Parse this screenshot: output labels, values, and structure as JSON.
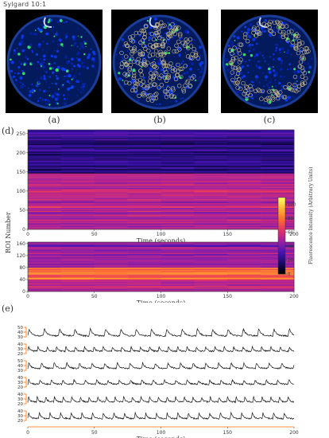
{
  "figure_title": "Sylgard 10:1",
  "panel_labels": {
    "a": "(a)",
    "b": "(b)",
    "c": "(c)",
    "d": "(d)",
    "e": "(e)"
  },
  "colors": {
    "roi_outline": "#c8b88a",
    "trace": "#1a1a1a",
    "scale_bar": "#ff6a00"
  },
  "chart_data": [
    {
      "type": "heatmap",
      "panel": "d-top",
      "title": "",
      "xlabel": "Time (seconds)",
      "ylabel": "ROI Number",
      "xlim": [
        0,
        200
      ],
      "ylim": [
        0,
        260
      ],
      "x_ticks": [
        0,
        50,
        100,
        150,
        200
      ],
      "y_ticks": [
        0,
        50,
        100,
        150,
        200,
        250
      ],
      "high_intensity_band_roi": [
        0,
        145
      ],
      "low_intensity_band_roi": [
        145,
        260
      ]
    },
    {
      "type": "heatmap",
      "panel": "d-bottom",
      "title": "",
      "xlabel": "Time (seconds)",
      "ylabel": "ROI Number",
      "xlim": [
        0,
        200
      ],
      "ylim": [
        0,
        165
      ],
      "x_ticks": [
        0,
        50,
        100,
        150,
        200
      ],
      "y_ticks": [
        0,
        40,
        80,
        120,
        160
      ],
      "bright_band_roi": [
        40,
        80
      ]
    },
    {
      "type": "colorbar",
      "label": "Fluorescence Intensity (Arbitrary Units)",
      "range": [
        0,
        110
      ],
      "ticks": [
        0,
        20,
        40,
        60,
        80,
        100
      ],
      "colormap": [
        "#000000",
        "#1a0a6e",
        "#4a14b8",
        "#a020a0",
        "#e0306a",
        "#ff6a30",
        "#ffb030",
        "#ffff60"
      ]
    },
    {
      "type": "line",
      "panel": "e",
      "xlabel": "Time (seconds)",
      "xlim": [
        0,
        200
      ],
      "x_ticks": [
        0,
        50,
        100,
        150,
        200
      ],
      "series_count": 6,
      "series": [
        {
          "y_ticks": [
            30,
            40,
            50
          ],
          "ylim": [
            25,
            55
          ],
          "peak_interval_s": 11.5,
          "baseline": 32,
          "amplitude": 15
        },
        {
          "y_ticks": [
            20,
            30,
            40
          ],
          "ylim": [
            15,
            45
          ],
          "peak_interval_s": 7.0,
          "baseline": 25,
          "amplitude": 10
        },
        {
          "y_ticks": [
            30,
            40,
            50
          ],
          "ylim": [
            25,
            55
          ],
          "peak_interval_s": 9.5,
          "baseline": 34,
          "amplitude": 12
        },
        {
          "y_ticks": [
            20,
            30,
            40
          ],
          "ylim": [
            15,
            45
          ],
          "peak_interval_s": 8.5,
          "baseline": 26,
          "amplitude": 9
        },
        {
          "y_ticks": [
            20,
            30,
            40
          ],
          "ylim": [
            15,
            45
          ],
          "peak_interval_s": 6.5,
          "baseline": 24,
          "amplitude": 11
        },
        {
          "y_ticks": [
            20,
            30,
            40
          ],
          "ylim": [
            15,
            45
          ],
          "peak_interval_s": 8.0,
          "baseline": 24,
          "amplitude": 12
        }
      ]
    }
  ]
}
